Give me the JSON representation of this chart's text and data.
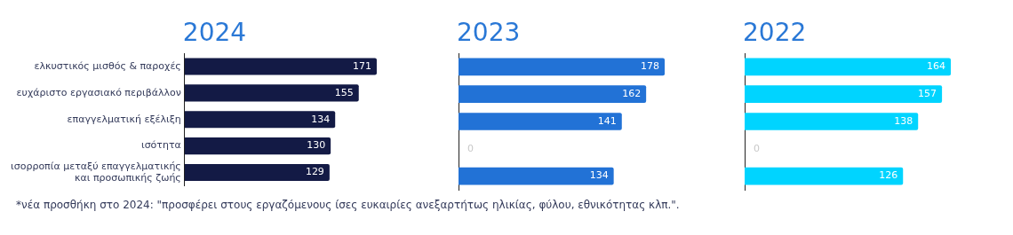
{
  "chart_data": [
    {
      "type": "bar",
      "orientation": "horizontal",
      "title": "2024",
      "categories": [
        "ελκυστικός μισθός & παροχές",
        "ευχάριστο εργασιακό περιβάλλον",
        "επαγγελματική εξέλιξη",
        "ισότητα",
        "ισορροπία μεταξύ επαγγελματικής και προσωπικής ζωής"
      ],
      "values": [
        171,
        155,
        134,
        130,
        129
      ],
      "color": "#131a45",
      "data_labels": true,
      "grid": false,
      "legend": false,
      "tick_labels": "y",
      "annotations": [
        "*νέα προσθήκη στο 2024: \"προσφέρει στους εργαζόμενους ίσες ευκαιρίες ανεξαρτήτως ηλικίας, φύλου, εθνικότητας κλπ.\"."
      ]
    },
    {
      "type": "bar",
      "orientation": "horizontal",
      "title": "2023",
      "categories": [
        null,
        null,
        null,
        null,
        null
      ],
      "values": [
        178,
        162,
        141,
        0,
        134
      ],
      "color": "#2272d6",
      "data_labels": true,
      "grid": false,
      "legend": false,
      "tick_labels": false
    },
    {
      "type": "bar",
      "orientation": "horizontal",
      "title": "2022",
      "categories": [
        null,
        null,
        null,
        null,
        null
      ],
      "values": [
        164,
        157,
        138,
        0,
        126
      ],
      "color": "#00d4ff",
      "data_labels": true,
      "grid": false,
      "legend": false,
      "tick_labels": false
    }
  ]
}
